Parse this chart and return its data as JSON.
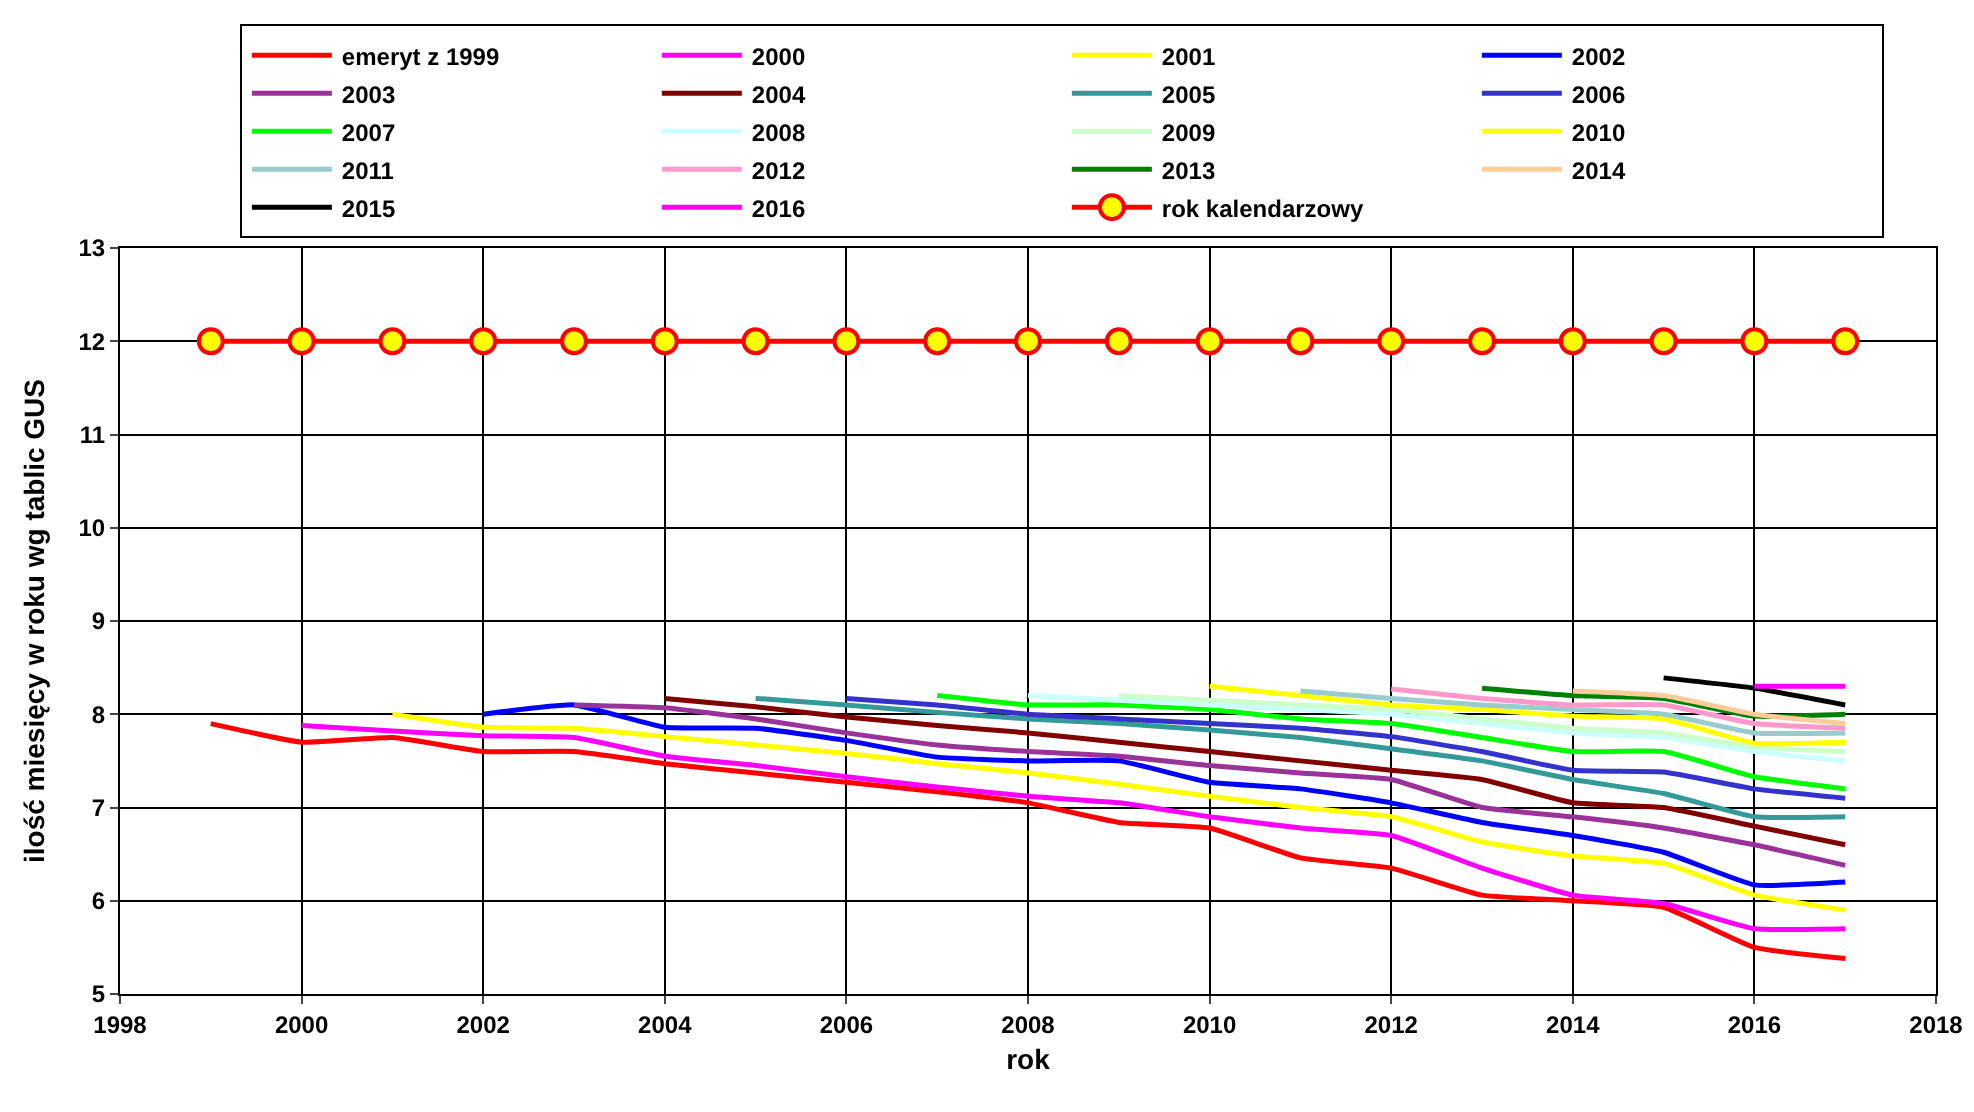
{
  "chart_data": {
    "type": "line",
    "xlabel": "rok",
    "ylabel": "ilość miesięcy w roku wg tablic GUS",
    "xlim": [
      1998,
      2018
    ],
    "xticks": [
      1998,
      2000,
      2002,
      2004,
      2006,
      2008,
      2010,
      2012,
      2014,
      2016,
      2018
    ],
    "ylim": [
      5,
      13
    ],
    "yticks": [
      5,
      6,
      7,
      8,
      9,
      10,
      11,
      12,
      13
    ],
    "grid": true,
    "legend": "top",
    "marker": "none",
    "line_style": "solid",
    "series": [
      {
        "name": "emeryt z 1999",
        "color": "#ff0000",
        "x": [
          1999,
          2000,
          2001,
          2002,
          2003,
          2004,
          2005,
          2006,
          2007,
          2008,
          2009,
          2010,
          2011,
          2012,
          2013,
          2014,
          2015,
          2016,
          2017
        ],
        "values": [
          7.9,
          7.7,
          7.75,
          7.6,
          7.6,
          7.47,
          7.37,
          7.27,
          7.17,
          7.05,
          6.84,
          6.78,
          6.46,
          6.35,
          6.06,
          6.0,
          5.93,
          5.5,
          5.38
        ]
      },
      {
        "name": "2000",
        "color": "#ff00ff",
        "x": [
          2000,
          2001,
          2002,
          2003,
          2004,
          2005,
          2006,
          2007,
          2008,
          2009,
          2010,
          2011,
          2012,
          2013,
          2014,
          2015,
          2016,
          2017
        ],
        "values": [
          7.88,
          7.82,
          7.77,
          7.75,
          7.55,
          7.45,
          7.33,
          7.22,
          7.12,
          7.05,
          6.9,
          6.78,
          6.7,
          6.35,
          6.06,
          5.97,
          5.7,
          5.7
        ]
      },
      {
        "name": "2001",
        "color": "#ffff00",
        "x": [
          2001,
          2002,
          2003,
          2004,
          2005,
          2006,
          2007,
          2008,
          2009,
          2010,
          2011,
          2012,
          2013,
          2014,
          2015,
          2016,
          2017
        ],
        "values": [
          8.0,
          7.86,
          7.85,
          7.76,
          7.67,
          7.58,
          7.47,
          7.37,
          7.25,
          7.12,
          7.0,
          6.9,
          6.63,
          6.48,
          6.4,
          6.06,
          5.9
        ]
      },
      {
        "name": "2002",
        "color": "#0000ff",
        "x": [
          2002,
          2003,
          2004,
          2005,
          2006,
          2007,
          2008,
          2009,
          2010,
          2011,
          2012,
          2013,
          2014,
          2015,
          2016,
          2017
        ],
        "values": [
          8.0,
          8.1,
          7.86,
          7.85,
          7.72,
          7.54,
          7.5,
          7.5,
          7.27,
          7.2,
          7.05,
          6.84,
          6.7,
          6.52,
          6.17,
          6.2
        ]
      },
      {
        "name": "2003",
        "color": "#993399",
        "x": [
          2003,
          2004,
          2005,
          2006,
          2007,
          2008,
          2009,
          2010,
          2011,
          2012,
          2013,
          2014,
          2015,
          2016,
          2017
        ],
        "values": [
          8.1,
          8.07,
          7.95,
          7.8,
          7.67,
          7.6,
          7.55,
          7.45,
          7.37,
          7.3,
          7.0,
          6.9,
          6.78,
          6.6,
          6.38
        ]
      },
      {
        "name": "2004",
        "color": "#800000",
        "x": [
          2004,
          2005,
          2006,
          2007,
          2008,
          2009,
          2010,
          2011,
          2012,
          2013,
          2014,
          2015,
          2016,
          2017
        ],
        "values": [
          8.17,
          8.08,
          7.97,
          7.88,
          7.8,
          7.7,
          7.6,
          7.5,
          7.4,
          7.3,
          7.05,
          7.0,
          6.8,
          6.6
        ]
      },
      {
        "name": "2005",
        "color": "#339999",
        "x": [
          2005,
          2006,
          2007,
          2008,
          2009,
          2010,
          2011,
          2012,
          2013,
          2014,
          2015,
          2016,
          2017
        ],
        "values": [
          8.17,
          8.1,
          8.02,
          7.95,
          7.9,
          7.83,
          7.75,
          7.63,
          7.5,
          7.3,
          7.15,
          6.9,
          6.9
        ]
      },
      {
        "name": "2006",
        "color": "#3333cc",
        "x": [
          2006,
          2007,
          2008,
          2009,
          2010,
          2011,
          2012,
          2013,
          2014,
          2015,
          2016,
          2017
        ],
        "values": [
          8.17,
          8.1,
          8.0,
          7.95,
          7.9,
          7.85,
          7.76,
          7.6,
          7.4,
          7.38,
          7.2,
          7.1
        ]
      },
      {
        "name": "2007",
        "color": "#00ff00",
        "x": [
          2007,
          2008,
          2009,
          2010,
          2011,
          2012,
          2013,
          2014,
          2015,
          2016,
          2017
        ],
        "values": [
          8.2,
          8.1,
          8.1,
          8.05,
          7.95,
          7.9,
          7.75,
          7.6,
          7.6,
          7.33,
          7.2
        ]
      },
      {
        "name": "2008",
        "color": "#ccffff",
        "x": [
          2008,
          2009,
          2010,
          2011,
          2012,
          2013,
          2014,
          2015,
          2016,
          2017
        ],
        "values": [
          8.2,
          8.15,
          8.1,
          8.05,
          8.0,
          7.9,
          7.8,
          7.75,
          7.6,
          7.5
        ]
      },
      {
        "name": "2009",
        "color": "#ccffcc",
        "x": [
          2009,
          2010,
          2011,
          2012,
          2013,
          2014,
          2015,
          2016,
          2017
        ],
        "values": [
          8.2,
          8.15,
          8.1,
          8.05,
          7.95,
          7.85,
          7.8,
          7.65,
          7.6
        ]
      },
      {
        "name": "2010",
        "color": "#ffff00",
        "x": [
          2010,
          2011,
          2012,
          2013,
          2014,
          2015,
          2016,
          2017
        ],
        "values": [
          8.3,
          8.2,
          8.1,
          8.05,
          7.98,
          7.95,
          7.69,
          7.7
        ]
      },
      {
        "name": "2011",
        "color": "#99cccc",
        "x": [
          2011,
          2012,
          2013,
          2014,
          2015,
          2016,
          2017
        ],
        "values": [
          8.25,
          8.17,
          8.1,
          8.05,
          8.0,
          7.8,
          7.8
        ]
      },
      {
        "name": "2012",
        "color": "#ff99cc",
        "x": [
          2012,
          2013,
          2014,
          2015,
          2016,
          2017
        ],
        "values": [
          8.27,
          8.17,
          8.1,
          8.1,
          7.9,
          7.85
        ]
      },
      {
        "name": "2013",
        "color": "#008000",
        "x": [
          2013,
          2014,
          2015,
          2016,
          2017
        ],
        "values": [
          8.28,
          8.2,
          8.17,
          7.98,
          8.0
        ]
      },
      {
        "name": "2014",
        "color": "#ffcc99",
        "x": [
          2014,
          2015,
          2016,
          2017
        ],
        "values": [
          8.25,
          8.2,
          8.0,
          7.9
        ]
      },
      {
        "name": "2015",
        "color": "#000000",
        "x": [
          2015,
          2016,
          2017
        ],
        "values": [
          8.39,
          8.28,
          8.1
        ]
      },
      {
        "name": "2016",
        "color": "#ff00ff",
        "x": [
          2016,
          2017
        ],
        "values": [
          8.3,
          8.3
        ]
      },
      {
        "name": "rok kalendarzowy",
        "color": "#ff0000",
        "marker": "circle",
        "x": [
          1999,
          2000,
          2001,
          2002,
          2003,
          2004,
          2005,
          2006,
          2007,
          2008,
          2009,
          2010,
          2011,
          2012,
          2013,
          2014,
          2015,
          2016,
          2017
        ],
        "values": [
          12,
          12,
          12,
          12,
          12,
          12,
          12,
          12,
          12,
          12,
          12,
          12,
          12,
          12,
          12,
          12,
          12,
          12,
          12
        ]
      }
    ]
  }
}
